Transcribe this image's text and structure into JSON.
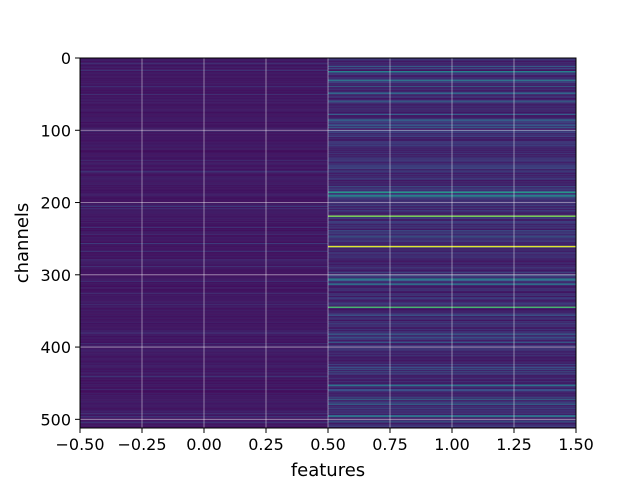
{
  "chart_data": {
    "type": "heatmap",
    "title": "",
    "xlabel": "features",
    "ylabel": "channels",
    "x": [
      0,
      1
    ],
    "xlim": [
      -0.5,
      1.5
    ],
    "ylim": [
      512,
      0
    ],
    "y_inverted": true,
    "n_rows": 512,
    "colormap": "viridis",
    "grid": true,
    "x_ticks": [
      "−0.50",
      "−0.25",
      "0.00",
      "0.25",
      "0.50",
      "0.75",
      "1.00",
      "1.25",
      "1.50"
    ],
    "x_tick_values": [
      -0.5,
      -0.25,
      0,
      0.25,
      0.5,
      0.75,
      1.0,
      1.25,
      1.5
    ],
    "y_ticks": [
      "0",
      "100",
      "200",
      "300",
      "400",
      "500"
    ],
    "y_tick_values": [
      0,
      100,
      200,
      300,
      400,
      500
    ],
    "column_0_intensity": "uniformly low (dark purple) with faint lighter rows",
    "column_1_highlighted_rows": [
      {
        "channel": 18,
        "value": 0.45
      },
      {
        "channel": 30,
        "value": 0.4
      },
      {
        "channel": 48,
        "value": 0.35
      },
      {
        "channel": 85,
        "value": 0.35
      },
      {
        "channel": 185,
        "value": 0.55
      },
      {
        "channel": 190,
        "value": 0.5
      },
      {
        "channel": 218,
        "value": 0.85
      },
      {
        "channel": 260,
        "value": 1.0
      },
      {
        "channel": 305,
        "value": 0.45
      },
      {
        "channel": 312,
        "value": 0.4
      },
      {
        "channel": 344,
        "value": 0.7
      },
      {
        "channel": 452,
        "value": 0.4
      },
      {
        "channel": 478,
        "value": 0.35
      },
      {
        "channel": 495,
        "value": 0.4
      }
    ]
  }
}
